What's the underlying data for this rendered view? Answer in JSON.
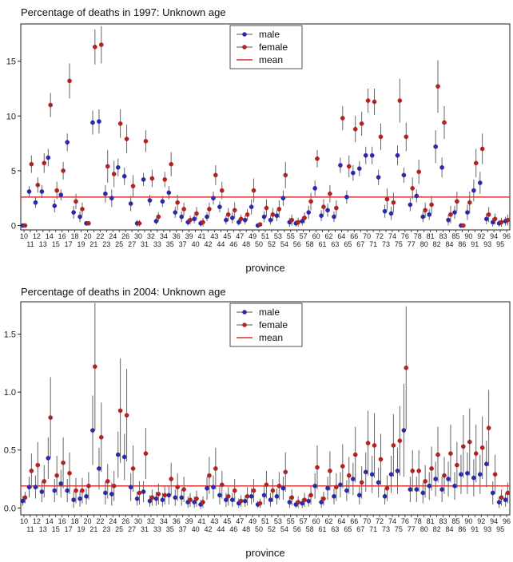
{
  "chart_data": [
    {
      "type": "scatter",
      "title": "Percentage of deaths in 1997: Unknown age",
      "xlabel": "province",
      "ylabel": "",
      "ylim": [
        -0.4,
        18.4
      ],
      "yticks": [
        0,
        5,
        10,
        15
      ],
      "legend_position": "top-center",
      "categories": [
        "10",
        "11",
        "12",
        "13",
        "14",
        "15",
        "16",
        "17",
        "18",
        "19",
        "20",
        "21",
        "22",
        "23",
        "24",
        "25",
        "26",
        "27",
        "30",
        "31",
        "32",
        "33",
        "34",
        "35",
        "36",
        "37",
        "39",
        "40",
        "41",
        "42",
        "43",
        "44",
        "45",
        "46",
        "47",
        "48",
        "49",
        "50",
        "51",
        "52",
        "53",
        "54",
        "55",
        "56",
        "57",
        "58",
        "60",
        "61",
        "62",
        "63",
        "64",
        "65",
        "66",
        "67",
        "70",
        "71",
        "72",
        "73",
        "74",
        "75",
        "76",
        "77",
        "78",
        "80",
        "81",
        "82",
        "83",
        "84",
        "85",
        "86",
        "90",
        "91",
        "92",
        "93",
        "94",
        "95",
        "96"
      ],
      "series": [
        {
          "name": "male",
          "color": "#2a2aa8",
          "values": [
            0.0,
            3.1,
            2.1,
            3.1,
            6.2,
            1.8,
            2.8,
            7.6,
            1.2,
            0.8,
            0.2,
            9.4,
            9.5,
            2.9,
            2.5,
            5.3,
            4.5,
            2.0,
            0.2,
            4.2,
            2.3,
            0.4,
            2.2,
            3.0,
            1.2,
            0.8,
            0.3,
            0.6,
            0.2,
            0.8,
            2.5,
            1.7,
            0.5,
            0.7,
            0.3,
            0.5,
            1.7,
            0.0,
            0.8,
            0.5,
            0.9,
            2.5,
            0.3,
            0.2,
            0.4,
            1.2,
            3.4,
            0.9,
            1.4,
            0.8,
            5.5,
            2.6,
            4.8,
            5.2,
            6.4,
            6.4,
            4.4,
            1.3,
            1.1,
            6.4,
            4.6,
            1.9,
            2.7,
            0.8,
            1.0,
            7.2,
            5.3,
            0.5,
            1.2,
            0.0,
            1.2,
            3.2,
            3.9,
            0.6,
            0.3,
            0.2,
            0.4
          ],
          "err": [
            0.1,
            0.5,
            0.5,
            0.6,
            0.8,
            0.6,
            0.5,
            0.8,
            0.6,
            0.5,
            0.2,
            1.1,
            1.1,
            0.8,
            0.8,
            0.8,
            0.8,
            0.7,
            0.3,
            0.6,
            0.5,
            0.3,
            0.5,
            0.6,
            0.5,
            0.5,
            0.3,
            0.4,
            0.3,
            0.4,
            0.6,
            0.5,
            0.4,
            0.5,
            0.3,
            0.4,
            0.7,
            0.1,
            0.5,
            0.4,
            0.5,
            0.7,
            0.4,
            0.3,
            0.4,
            0.6,
            0.7,
            0.5,
            0.6,
            0.5,
            0.7,
            0.6,
            0.7,
            0.7,
            0.8,
            0.8,
            0.7,
            0.6,
            0.6,
            0.9,
            0.7,
            0.6,
            0.6,
            0.5,
            0.5,
            1.5,
            0.9,
            0.5,
            0.6,
            0.2,
            0.7,
            1.0,
            1.0,
            0.5,
            0.4,
            0.3,
            0.4
          ]
        },
        {
          "name": "female",
          "color": "#b22222",
          "values": [
            0.0,
            5.6,
            3.7,
            5.7,
            11.0,
            3.2,
            5.0,
            13.2,
            2.2,
            1.5,
            0.2,
            16.3,
            16.5,
            5.4,
            4.7,
            9.3,
            7.9,
            3.6,
            0.2,
            7.7,
            4.3,
            0.8,
            4.2,
            5.6,
            2.1,
            1.5,
            0.5,
            1.1,
            0.3,
            1.5,
            4.6,
            3.2,
            1.0,
            1.4,
            0.6,
            1.0,
            3.2,
            0.1,
            1.6,
            1.0,
            1.5,
            4.6,
            0.5,
            0.3,
            0.7,
            2.2,
            6.1,
            1.7,
            2.9,
            1.6,
            9.8,
            5.4,
            8.8,
            9.3,
            11.4,
            11.3,
            8.1,
            2.4,
            2.1,
            11.4,
            8.1,
            3.4,
            4.9,
            1.4,
            1.9,
            12.7,
            9.4,
            1.0,
            2.2,
            0.0,
            2.1,
            5.7,
            7.0,
            1.0,
            0.6,
            0.3,
            0.5
          ],
          "err": [
            0.1,
            0.8,
            0.7,
            0.9,
            1.1,
            0.8,
            0.8,
            1.6,
            0.7,
            0.6,
            0.2,
            1.6,
            1.7,
            1.5,
            1.2,
            1.3,
            1.3,
            1.0,
            0.3,
            1.0,
            0.8,
            0.4,
            0.7,
            1.1,
            0.7,
            0.6,
            0.4,
            0.6,
            0.4,
            0.6,
            0.9,
            0.8,
            0.6,
            0.7,
            0.4,
            0.5,
            1.1,
            0.1,
            0.8,
            0.6,
            0.8,
            1.2,
            0.5,
            0.4,
            0.5,
            0.8,
            0.8,
            0.7,
            0.8,
            0.7,
            1.1,
            1.0,
            1.2,
            1.1,
            1.1,
            1.2,
            1.2,
            1.0,
            0.9,
            2.0,
            1.3,
            1.0,
            1.1,
            0.7,
            0.8,
            2.4,
            1.5,
            0.8,
            0.9,
            0.2,
            1.0,
            1.3,
            1.4,
            0.7,
            0.5,
            0.4,
            0.5
          ]
        }
      ],
      "reference_lines": [
        {
          "name": "mean",
          "value": 2.6,
          "color": "#e03030"
        }
      ]
    },
    {
      "type": "scatter",
      "title": "Percentage of deaths in 2004: Unknown age",
      "xlabel": "province",
      "ylabel": "",
      "ylim": [
        -0.06,
        1.78
      ],
      "yticks": [
        0.0,
        0.5,
        1.0,
        1.5
      ],
      "legend_position": "top-center",
      "categories": [
        "10",
        "11",
        "12",
        "13",
        "14",
        "15",
        "16",
        "17",
        "18",
        "19",
        "20",
        "21",
        "22",
        "23",
        "24",
        "25",
        "26",
        "27",
        "30",
        "31",
        "32",
        "33",
        "34",
        "35",
        "36",
        "37",
        "39",
        "40",
        "41",
        "42",
        "43",
        "44",
        "45",
        "46",
        "47",
        "48",
        "49",
        "50",
        "51",
        "52",
        "53",
        "54",
        "55",
        "56",
        "57",
        "58",
        "60",
        "61",
        "62",
        "63",
        "64",
        "65",
        "66",
        "67",
        "70",
        "71",
        "72",
        "73",
        "74",
        "75",
        "76",
        "77",
        "78",
        "80",
        "81",
        "82",
        "83",
        "84",
        "85",
        "86",
        "90",
        "91",
        "92",
        "93",
        "94",
        "95",
        "96"
      ],
      "series": [
        {
          "name": "male",
          "color": "#2a2aa8",
          "values": [
            0.06,
            0.18,
            0.18,
            0.14,
            0.43,
            0.15,
            0.21,
            0.15,
            0.07,
            0.08,
            0.1,
            0.67,
            0.34,
            0.13,
            0.12,
            0.46,
            0.44,
            0.18,
            0.08,
            0.14,
            0.06,
            0.08,
            0.07,
            0.11,
            0.09,
            0.09,
            0.05,
            0.05,
            0.03,
            0.17,
            0.18,
            0.11,
            0.07,
            0.07,
            0.04,
            0.06,
            0.1,
            0.03,
            0.11,
            0.07,
            0.1,
            0.17,
            0.05,
            0.03,
            0.04,
            0.06,
            0.19,
            0.05,
            0.17,
            0.1,
            0.2,
            0.15,
            0.25,
            0.11,
            0.31,
            0.29,
            0.22,
            0.1,
            0.29,
            0.32,
            0.67,
            0.16,
            0.16,
            0.13,
            0.19,
            0.25,
            0.16,
            0.25,
            0.19,
            0.29,
            0.3,
            0.26,
            0.29,
            0.38,
            0.13,
            0.05,
            0.07
          ],
          "err": [
            0.04,
            0.09,
            0.1,
            0.09,
            0.18,
            0.1,
            0.12,
            0.1,
            0.07,
            0.07,
            0.07,
            0.3,
            0.18,
            0.1,
            0.1,
            0.2,
            0.2,
            0.12,
            0.06,
            0.09,
            0.05,
            0.06,
            0.06,
            0.08,
            0.07,
            0.07,
            0.05,
            0.05,
            0.04,
            0.1,
            0.1,
            0.08,
            0.06,
            0.06,
            0.04,
            0.05,
            0.07,
            0.03,
            0.08,
            0.06,
            0.07,
            0.1,
            0.05,
            0.03,
            0.04,
            0.05,
            0.11,
            0.05,
            0.1,
            0.07,
            0.11,
            0.09,
            0.14,
            0.08,
            0.17,
            0.16,
            0.13,
            0.07,
            0.16,
            0.2,
            0.4,
            0.11,
            0.11,
            0.09,
            0.12,
            0.15,
            0.11,
            0.15,
            0.12,
            0.17,
            0.18,
            0.16,
            0.17,
            0.2,
            0.1,
            0.05,
            0.06
          ]
        },
        {
          "name": "female",
          "color": "#b22222",
          "values": [
            0.09,
            0.32,
            0.37,
            0.23,
            0.78,
            0.28,
            0.39,
            0.3,
            0.15,
            0.15,
            0.19,
            1.22,
            0.61,
            0.23,
            0.19,
            0.84,
            0.8,
            0.34,
            0.13,
            0.47,
            0.09,
            0.12,
            0.11,
            0.25,
            0.18,
            0.16,
            0.07,
            0.08,
            0.05,
            0.28,
            0.34,
            0.2,
            0.1,
            0.15,
            0.06,
            0.1,
            0.15,
            0.04,
            0.2,
            0.15,
            0.19,
            0.31,
            0.09,
            0.05,
            0.07,
            0.11,
            0.35,
            0.08,
            0.32,
            0.18,
            0.36,
            0.28,
            0.46,
            0.22,
            0.56,
            0.54,
            0.42,
            0.17,
            0.54,
            0.58,
            1.21,
            0.32,
            0.32,
            0.23,
            0.34,
            0.46,
            0.28,
            0.47,
            0.37,
            0.53,
            0.57,
            0.47,
            0.52,
            0.69,
            0.29,
            0.09,
            0.13
          ],
          "err": [
            0.05,
            0.15,
            0.2,
            0.14,
            0.35,
            0.17,
            0.22,
            0.18,
            0.11,
            0.11,
            0.12,
            0.55,
            0.3,
            0.15,
            0.13,
            0.45,
            0.4,
            0.2,
            0.1,
            0.22,
            0.07,
            0.09,
            0.08,
            0.14,
            0.12,
            0.11,
            0.06,
            0.07,
            0.05,
            0.16,
            0.18,
            0.12,
            0.08,
            0.1,
            0.05,
            0.08,
            0.1,
            0.04,
            0.12,
            0.1,
            0.12,
            0.17,
            0.07,
            0.05,
            0.06,
            0.08,
            0.19,
            0.06,
            0.17,
            0.12,
            0.19,
            0.16,
            0.24,
            0.14,
            0.28,
            0.28,
            0.22,
            0.11,
            0.27,
            0.3,
            0.53,
            0.18,
            0.18,
            0.14,
            0.19,
            0.24,
            0.16,
            0.25,
            0.2,
            0.27,
            0.29,
            0.25,
            0.27,
            0.33,
            0.17,
            0.07,
            0.09
          ]
        }
      ],
      "reference_lines": [
        {
          "name": "mean",
          "value": 0.19,
          "color": "#e03030"
        }
      ]
    }
  ]
}
